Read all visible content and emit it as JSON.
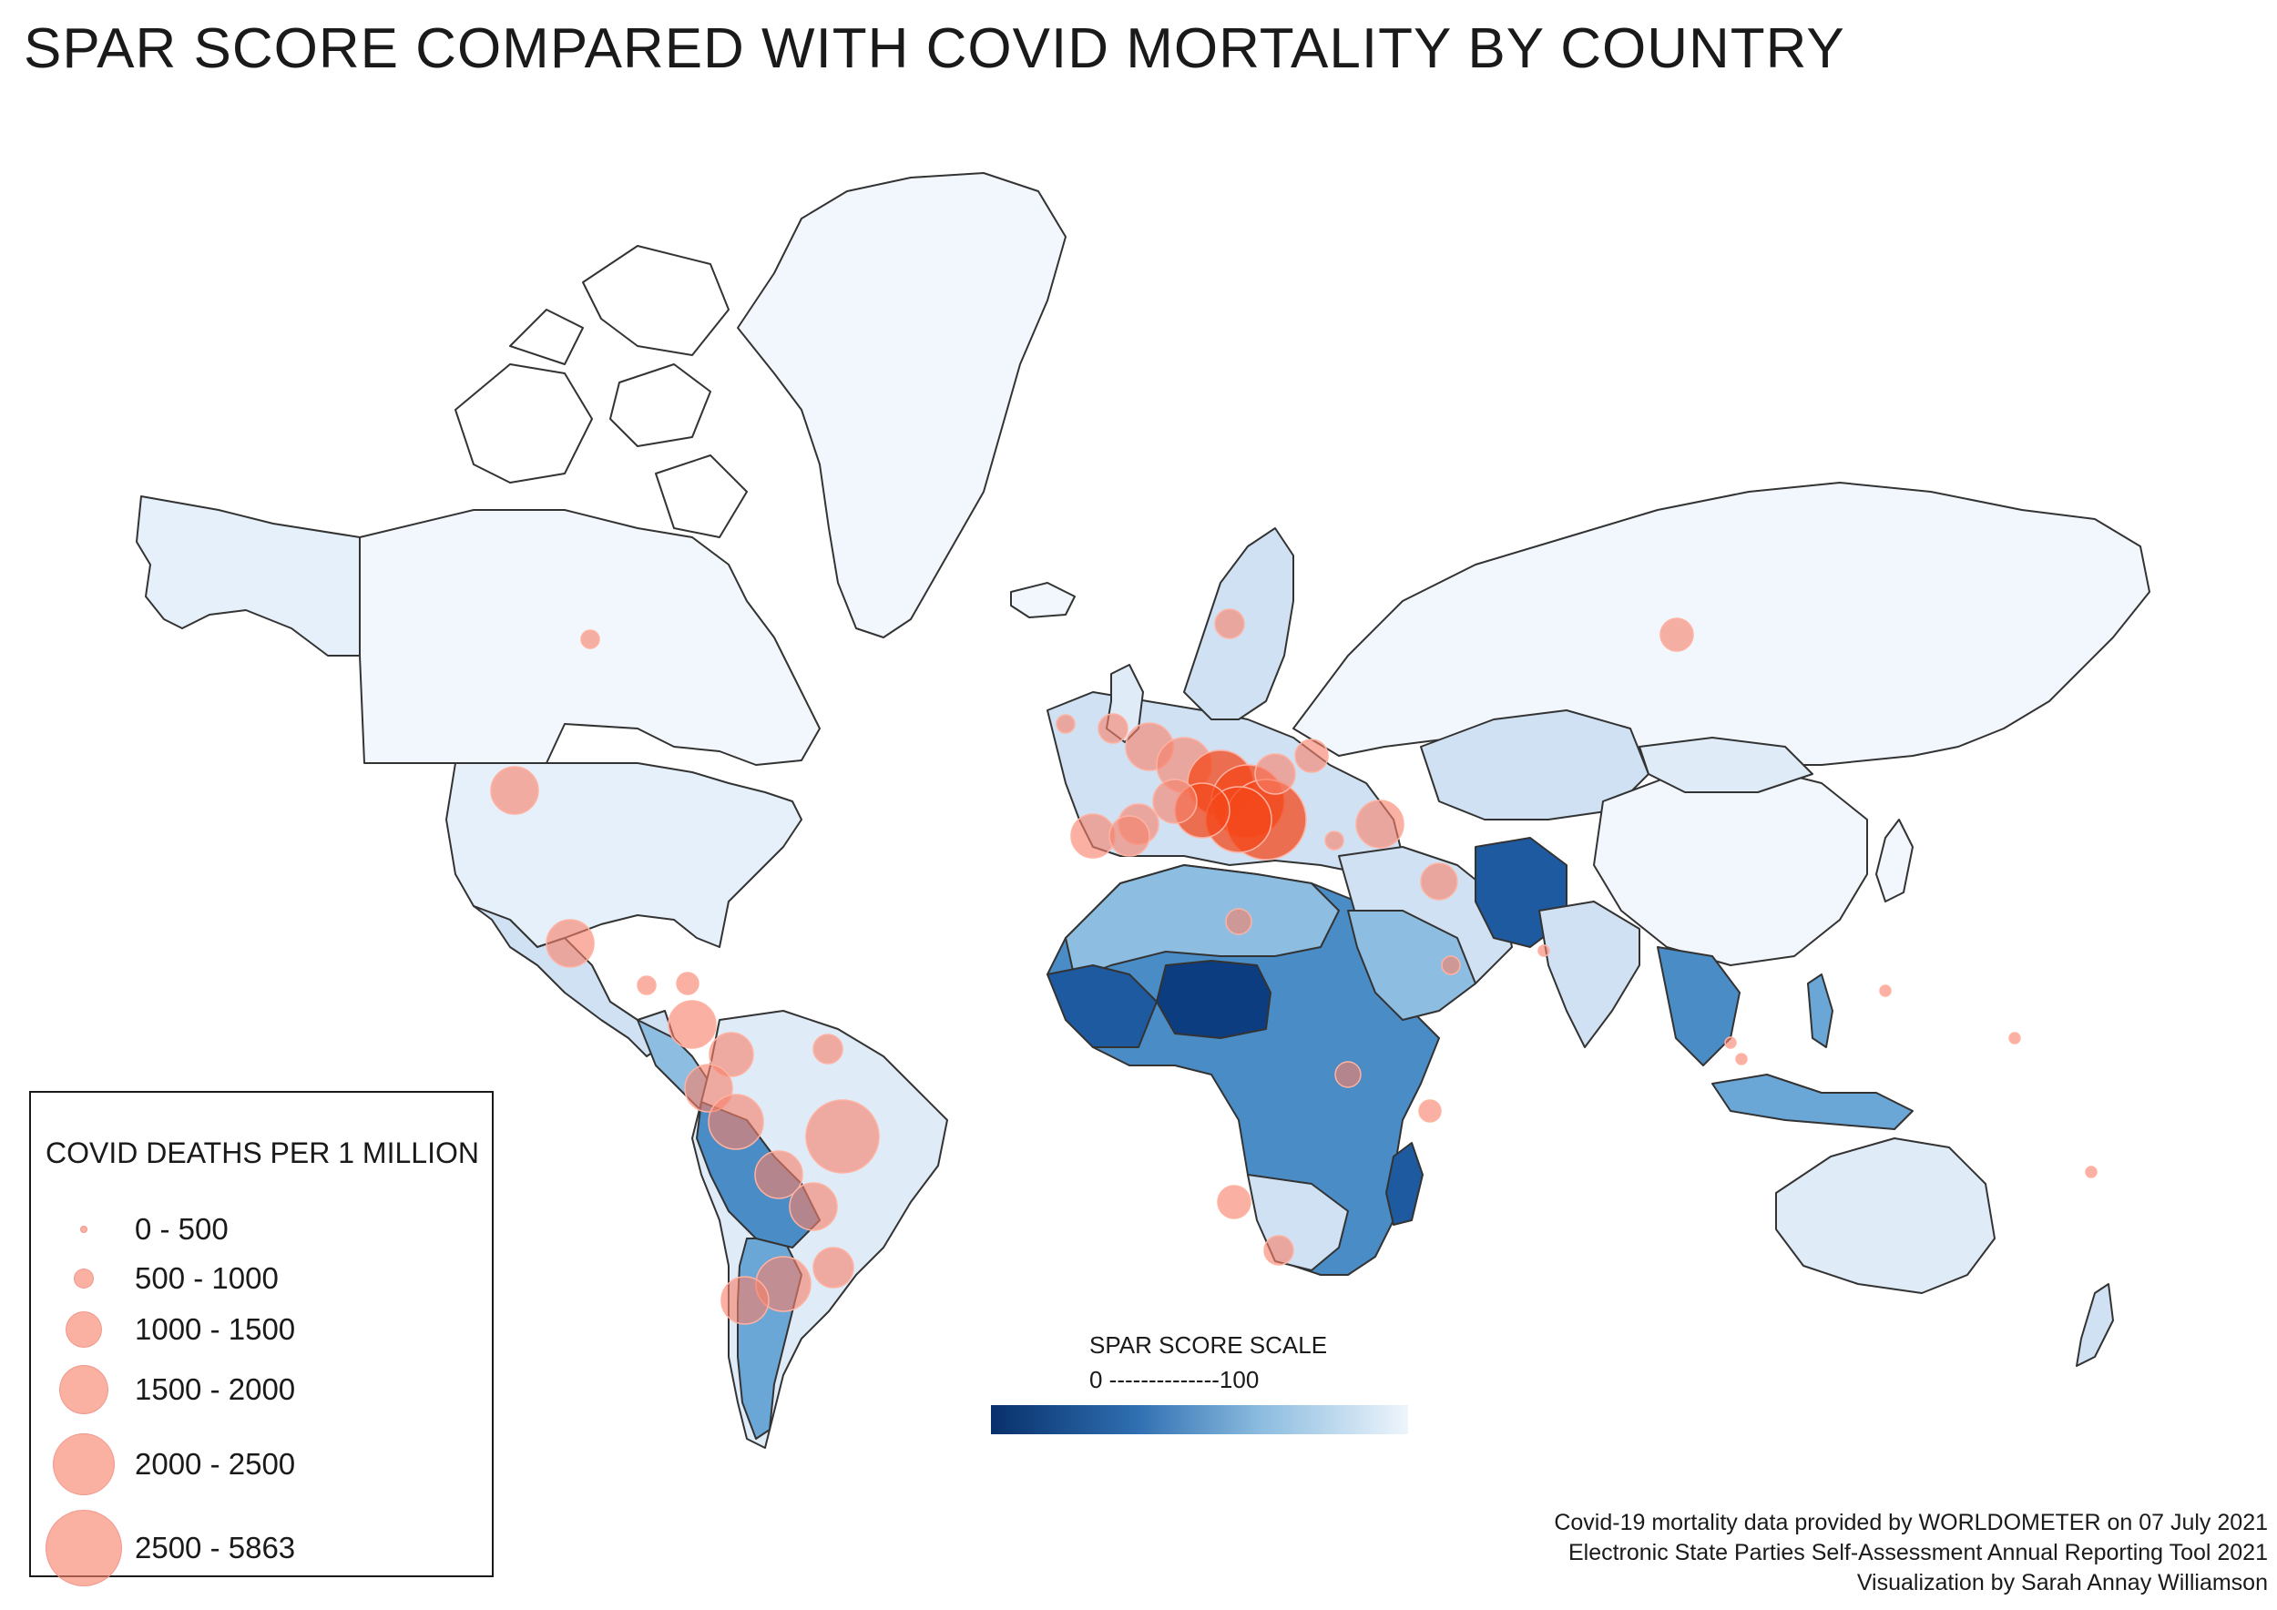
{
  "title": "SPAR SCORE COMPARED WITH COVID MORTALITY BY COUNTRY",
  "legend": {
    "title": "COVID DEATHS PER 1 MILLION",
    "items": [
      {
        "label": "0 - 500"
      },
      {
        "label": "500 - 1000"
      },
      {
        "label": "1000 - 1500"
      },
      {
        "label": "1500 - 2000"
      },
      {
        "label": "2000 - 2500"
      },
      {
        "label": "2500 - 5863"
      }
    ]
  },
  "scale": {
    "title": "SPAR SCORE SCALE",
    "range_text": "0 --------------100",
    "min": 0,
    "max": 100,
    "color_low": "#08306b",
    "color_high": "#eef5fc"
  },
  "credits": {
    "line1": "Covid-19 mortality data provided by WORLDOMETER on 07 July 2021",
    "line2": "Electronic State Parties Self-Assessment Annual Reporting Tool 2021",
    "line3": "Visualization by Sarah Annay Williamson"
  },
  "colors": {
    "bubble_fill": "#f7816a",
    "bubble_hot": "#f4471a",
    "land_outline": "#333333",
    "spar_high": "#f2f7fd",
    "spar_mid": "#6aa6d6",
    "spar_low": "#0b3d80"
  }
}
